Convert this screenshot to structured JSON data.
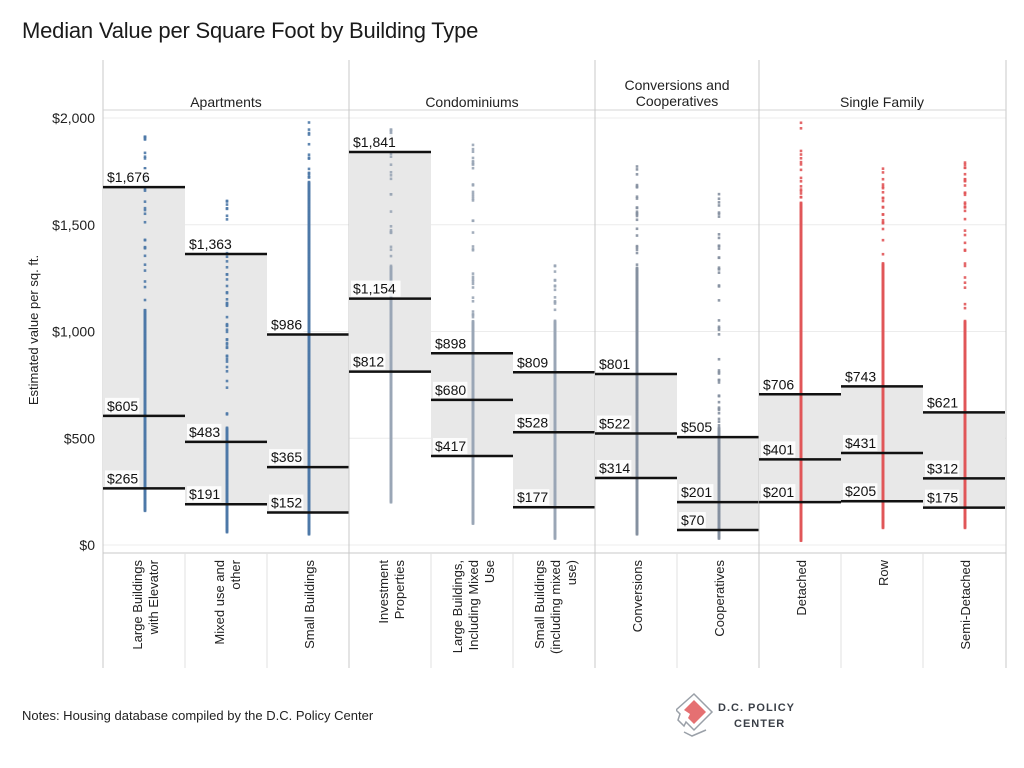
{
  "title": "Median Value per Square Foot by Building Type",
  "notes": "Notes: Housing database compiled by the D.C. Policy Center",
  "logo": {
    "line1": "D.C. POLICY",
    "line2": "CENTER"
  },
  "colors": {
    "Apartments": "#4e79a7",
    "Condominiums": "#9aa6b6",
    "Conversions and Cooperatives": "#8590a0",
    "Single Family": "#e15759",
    "band": "#e8e8e8"
  },
  "chart_data": {
    "type": "box",
    "title": "Median Value per Square Foot by Building Type",
    "ylabel": "Estimated value per sq. ft.",
    "ylim": [
      0,
      2000
    ],
    "yticks": [
      "$0",
      "$500",
      "$1,000",
      "$1,500",
      "$2,000"
    ],
    "ytick_values": [
      0,
      500,
      1000,
      1500,
      2000
    ],
    "grid": true,
    "groups": [
      {
        "name": "Apartments",
        "categories": [
          {
            "label": "Large Buildings with Elevator",
            "lines": [
              "Large Buildings",
              "with Elevator"
            ],
            "q1": 265,
            "median": 605,
            "q3": 1676,
            "labels": [
              "$265",
              "$605",
              "$1,676"
            ],
            "min": 160,
            "max": 1980,
            "dense_to": 1100
          },
          {
            "label": "Mixed use and other",
            "lines": [
              "Mixed use and",
              "other"
            ],
            "q1": 191,
            "median": 483,
            "q3": 1363,
            "labels": [
              "$191",
              "$483",
              "$1,363"
            ],
            "min": 60,
            "max": 1680,
            "dense_to": 550
          },
          {
            "label": "Small Buildings",
            "lines": [
              "Small Buildings"
            ],
            "q1": 152,
            "median": 365,
            "q3": 986,
            "labels": [
              "$152",
              "$365",
              "$986"
            ],
            "min": 50,
            "max": 1980,
            "dense_to": 1700
          }
        ]
      },
      {
        "name": "Condominiums",
        "categories": [
          {
            "label": "Investment Properties",
            "lines": [
              "Investment",
              "Properties"
            ],
            "q1": 812,
            "median": 1154,
            "q3": 1841,
            "labels": [
              "$812",
              "$1,154",
              "$1,841"
            ],
            "min": 200,
            "max": 2000,
            "dense_to": 1300
          },
          {
            "label": "Large Buildings, Including Mixed Use",
            "lines": [
              "Large Buildings,",
              "Including Mixed",
              "Use"
            ],
            "q1": 417,
            "median": 680,
            "q3": 898,
            "labels": [
              "$417",
              "$680",
              "$898"
            ],
            "min": 100,
            "max": 1880,
            "dense_to": 1050
          },
          {
            "label": "Small Buildings (including mixed use)",
            "lines": [
              "Small Buildings",
              "(including mixed",
              "use)"
            ],
            "q1": 177,
            "median": 528,
            "q3": 809,
            "labels": [
              "$177",
              "$528",
              "$809"
            ],
            "min": 30,
            "max": 1310,
            "dense_to": 1050
          }
        ]
      },
      {
        "name": "Conversions and Cooperatives",
        "name_lines": [
          "Conversions and",
          "Cooperatives"
        ],
        "categories": [
          {
            "label": "Conversions",
            "lines": [
              "Conversions"
            ],
            "q1": 314,
            "median": 522,
            "q3": 801,
            "labels": [
              "$314",
              "$522",
              "$801"
            ],
            "min": 50,
            "max": 1800,
            "dense_to": 1300
          },
          {
            "label": "Cooperatives",
            "lines": [
              "Cooperatives"
            ],
            "q1": 70,
            "median": 201,
            "q3": 505,
            "labels": [
              "$70",
              "$201",
              "$505"
            ],
            "min": 30,
            "max": 1650,
            "dense_to": 550
          }
        ]
      },
      {
        "name": "Single Family",
        "categories": [
          {
            "label": "Detached",
            "lines": [
              "Detached"
            ],
            "q1": 201,
            "median": 401,
            "q3": 706,
            "labels": [
              "$201",
              "$401",
              "$706"
            ],
            "min": 20,
            "max": 1980,
            "dense_to": 1600
          },
          {
            "label": "Row",
            "lines": [
              "Row"
            ],
            "q1": 205,
            "median": 431,
            "q3": 743,
            "labels": [
              "$205",
              "$431",
              "$743"
            ],
            "min": 80,
            "max": 1780,
            "dense_to": 1320
          },
          {
            "label": "Semi-Detached",
            "lines": [
              "Semi-Detached"
            ],
            "q1": 175,
            "median": 312,
            "q3": 621,
            "labels": [
              "$175",
              "$312",
              "$621"
            ],
            "min": 80,
            "max": 1800,
            "dense_to": 1050
          }
        ]
      }
    ]
  }
}
